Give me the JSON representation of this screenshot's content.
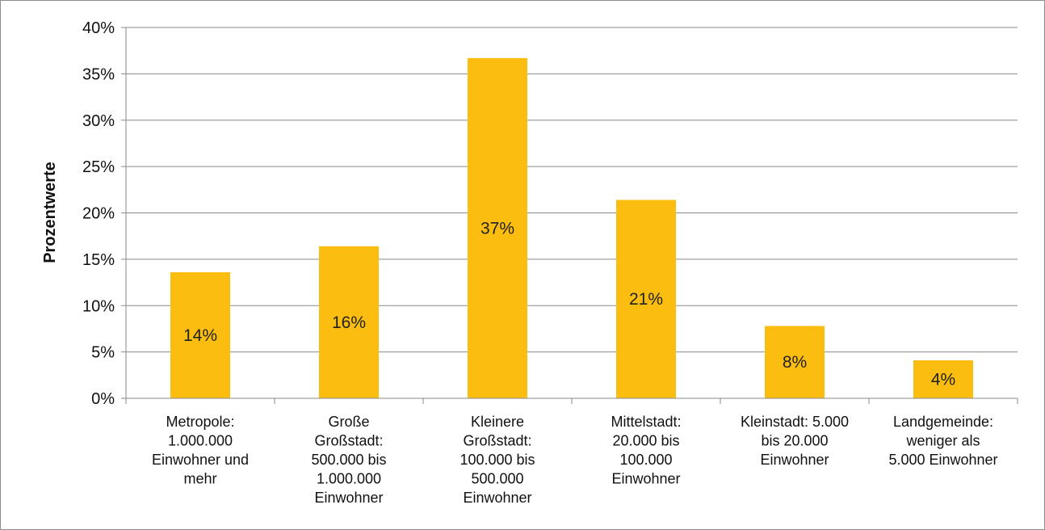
{
  "chart_data": {
    "type": "bar",
    "title": "",
    "xlabel": "",
    "ylabel": "Prozentwerte",
    "ylim": [
      0,
      40
    ],
    "y_ticks": [
      "0%",
      "5%",
      "10%",
      "15%",
      "20%",
      "25%",
      "30%",
      "35%",
      "40%"
    ],
    "grid": true,
    "legend": "none",
    "bar_color": "#FBBD10",
    "categories": [
      [
        "Metropole:",
        "1.000.000",
        "Einwohner und",
        "mehr"
      ],
      [
        "Große",
        "Großstadt:",
        "500.000 bis",
        "1.000.000",
        "Einwohner"
      ],
      [
        "Kleinere",
        "Großstadt:",
        "100.000 bis",
        "500.000",
        "Einwohner"
      ],
      [
        "Mittelstadt:",
        "20.000 bis",
        "100.000",
        "Einwohner"
      ],
      [
        "Kleinstadt: 5.000",
        "bis 20.000",
        "Einwohner"
      ],
      [
        "Landgemeinde:",
        "weniger als",
        "5.000 Einwohner"
      ]
    ],
    "values": [
      13.6,
      16.4,
      36.7,
      21.4,
      7.8,
      4.1
    ],
    "data_labels": [
      "14%",
      "16%",
      "37%",
      "21%",
      "8%",
      "4%"
    ]
  }
}
